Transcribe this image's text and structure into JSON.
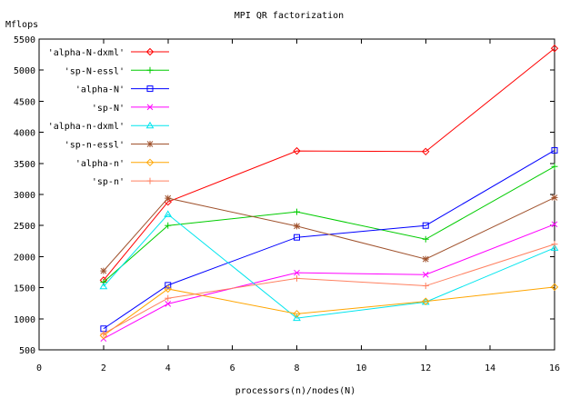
{
  "chart_data": {
    "type": "line",
    "title": "MPI QR factorization",
    "xlabel": "processors(n)/nodes(N)",
    "ylabel": "Mflops",
    "xlim": [
      0,
      16
    ],
    "ylim": [
      500,
      5500
    ],
    "xticks": [
      0,
      2,
      4,
      6,
      8,
      10,
      12,
      14,
      16
    ],
    "yticks": [
      500,
      1000,
      1500,
      2000,
      2500,
      3000,
      3500,
      4000,
      4500,
      5000,
      5500
    ],
    "grid": false,
    "legend_position": "top-left",
    "x": [
      2,
      4,
      8,
      12,
      16
    ],
    "series": [
      {
        "name": "'alpha-N-dxml'",
        "color": "#ff0000",
        "marker": "diamond",
        "values": [
          1620,
          2880,
          3700,
          3690,
          5350
        ]
      },
      {
        "name": "'sp-N-essl'",
        "color": "#00cc00",
        "marker": "plus",
        "values": [
          1590,
          2500,
          2720,
          2280,
          3450
        ]
      },
      {
        "name": "'alpha-N'",
        "color": "#0000ff",
        "marker": "square",
        "values": [
          840,
          1540,
          2310,
          2500,
          3710
        ]
      },
      {
        "name": "'sp-N'",
        "color": "#ff00ff",
        "marker": "cross",
        "values": [
          680,
          1240,
          1740,
          1710,
          2520
        ]
      },
      {
        "name": "'alpha-n-dxml'",
        "color": "#00e5ee",
        "marker": "triangle",
        "values": [
          1520,
          2680,
          1010,
          1270,
          2140
        ]
      },
      {
        "name": "'sp-n-essl'",
        "color": "#a0522d",
        "marker": "star",
        "values": [
          1770,
          2940,
          2490,
          1960,
          2950
        ]
      },
      {
        "name": "'alpha-n'",
        "color": "#ffa500",
        "marker": "diamond",
        "values": [
          730,
          1480,
          1080,
          1280,
          1510
        ]
      },
      {
        "name": "'sp-n'",
        "color": "#ff8060",
        "marker": "plus",
        "values": [
          760,
          1330,
          1650,
          1530,
          2200
        ]
      }
    ]
  }
}
